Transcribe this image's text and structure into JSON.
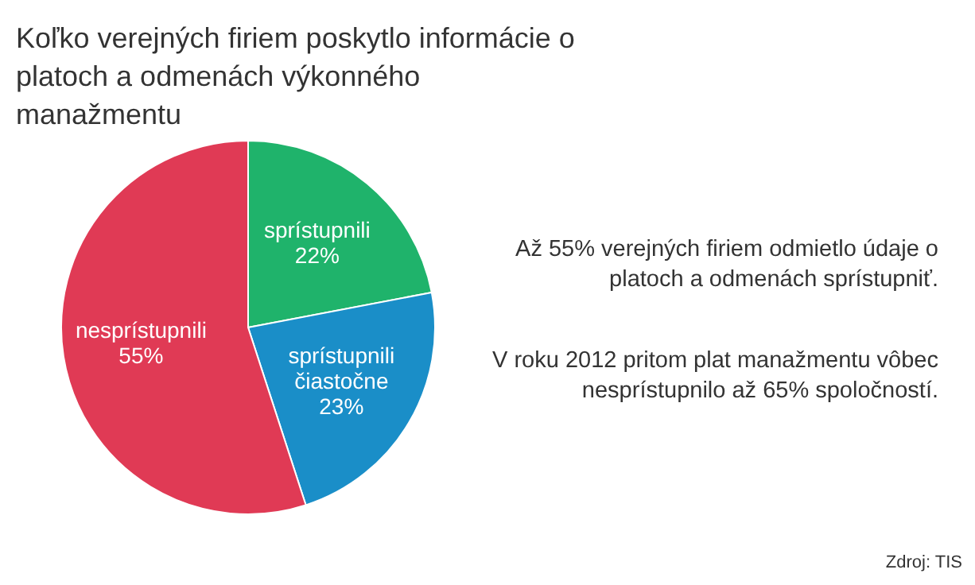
{
  "chart_data": {
    "type": "pie",
    "title": "Koľko verejných firiem poskytlo informácie o platoch a odmenách výkonného manažmentu",
    "categories": [
      "sprístupnili",
      "sprístupnili čiastočne",
      "nesprístupnili"
    ],
    "values": [
      22,
      23,
      55
    ],
    "value_labels": [
      "22%",
      "23%",
      "55%"
    ],
    "colors": [
      "#1fb36b",
      "#1a8ec8",
      "#e03a55"
    ],
    "legend": false,
    "annotations": [
      "Až 55% verejných firiem odmietlo údaje o platoch a odmenách sprístupniť.",
      "V roku 2012 pritom plat manažmentu vôbec nesprístupnilo až 65% spoločností.",
      "Zdroj: TIS"
    ]
  }
}
